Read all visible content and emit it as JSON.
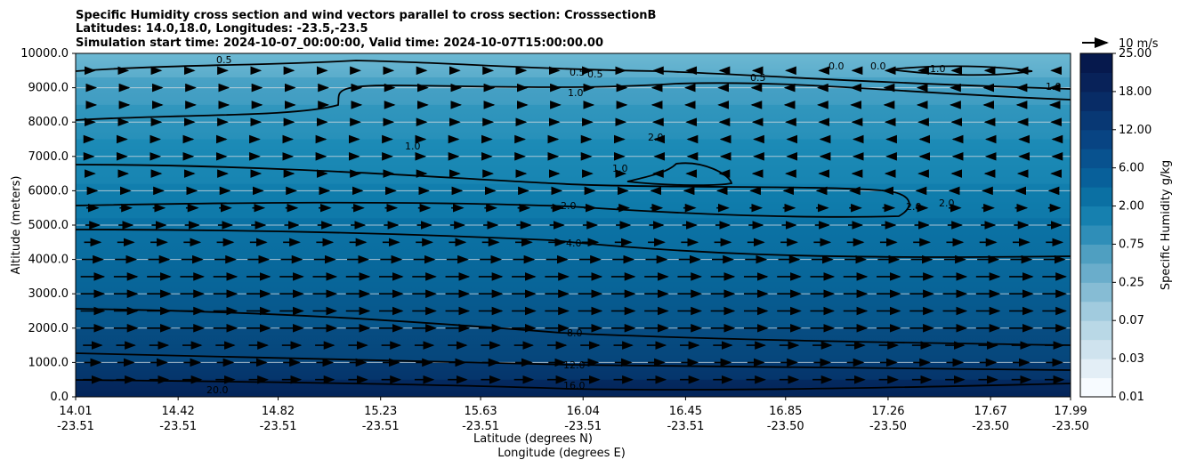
{
  "chart_data": {
    "type": "contour",
    "title_lines": [
      "Specific Humidity cross section and wind vectors parallel to cross section: CrosssectionB",
      "Latitudes: 14.0,18.0, Longitudes: -23.5,-23.5",
      "Simulation start time: 2024-10-07_00:00:00, Valid time: 2024-10-07T15:00:00.00"
    ],
    "ylabel": "Altitude (meters)",
    "xlabel_lat": "Latitude (degrees N)",
    "xlabel_lon": "Longitude (degrees E)",
    "ylim": [
      0,
      10000
    ],
    "yticks": [
      "0.0",
      "1000.0",
      "2000.0",
      "3000.0",
      "4000.0",
      "5000.0",
      "6000.0",
      "7000.0",
      "8000.0",
      "9000.0",
      "10000.0"
    ],
    "xticks_lat": [
      "14.01",
      "14.42",
      "14.82",
      "15.23",
      "15.63",
      "16.04",
      "16.45",
      "16.85",
      "17.26",
      "17.67",
      "17.99"
    ],
    "xticks_lon": [
      "-23.51",
      "-23.51",
      "-23.51",
      "-23.51",
      "-23.51",
      "-23.51",
      "-23.51",
      "-23.50",
      "-23.50",
      "-23.50",
      "-23.50"
    ],
    "colorbar_label": "Specific Humidity g/kg",
    "colorbar_ticks": [
      "0.01",
      "0.03",
      "0.07",
      "0.25",
      "0.75",
      "2.00",
      "6.00",
      "12.00",
      "18.00",
      "25.00"
    ],
    "quiver_key_label": "10 m/s",
    "contour_labels": [
      "0.5",
      "0.5",
      "0.5",
      "0.5",
      "1.0",
      "1.0",
      "1.0",
      "1.0",
      "1.0",
      "2.0",
      "2.0",
      "2.0",
      "2.0",
      "4.0",
      "8.0",
      "12.0",
      "16.0",
      "20.0",
      "0.0",
      "0.0"
    ],
    "humidity_layers": [
      {
        "z_min": 0,
        "z_max": 500,
        "value": 18
      },
      {
        "z_min": 500,
        "z_max": 1000,
        "value": 14
      },
      {
        "z_min": 1000,
        "z_max": 2000,
        "value": 11
      },
      {
        "z_min": 2000,
        "z_max": 3000,
        "value": 8
      },
      {
        "z_min": 3000,
        "z_max": 4000,
        "value": 6
      },
      {
        "z_min": 4000,
        "z_max": 5200,
        "value": 4
      },
      {
        "z_min": 5200,
        "z_max": 6200,
        "value": 2.5
      },
      {
        "z_min": 6200,
        "z_max": 7500,
        "value": 1.8
      },
      {
        "z_min": 7500,
        "z_max": 8500,
        "value": 1.2
      },
      {
        "z_min": 8500,
        "z_max": 9300,
        "value": 0.8
      },
      {
        "z_min": 9300,
        "z_max": 10000,
        "value": 0.4
      }
    ],
    "wind_rows_altitude_m": [
      500,
      1000,
      1500,
      2000,
      2500,
      3000,
      3500,
      4000,
      4500,
      5000,
      5500,
      6000,
      6500,
      7000,
      7500,
      8000,
      8500,
      9000,
      9500
    ],
    "wind_speed_by_row_ms": [
      8,
      7,
      8,
      10,
      10,
      10,
      10,
      9,
      7,
      6,
      5,
      4,
      2,
      1,
      1,
      2,
      3,
      3,
      2
    ]
  },
  "colors": {
    "surface": "#08306b",
    "dark": "#0b4a84",
    "mid": "#0e6a9e",
    "light": "#2d8fb8",
    "top": "#5fb0cc",
    "line": "#000000"
  }
}
